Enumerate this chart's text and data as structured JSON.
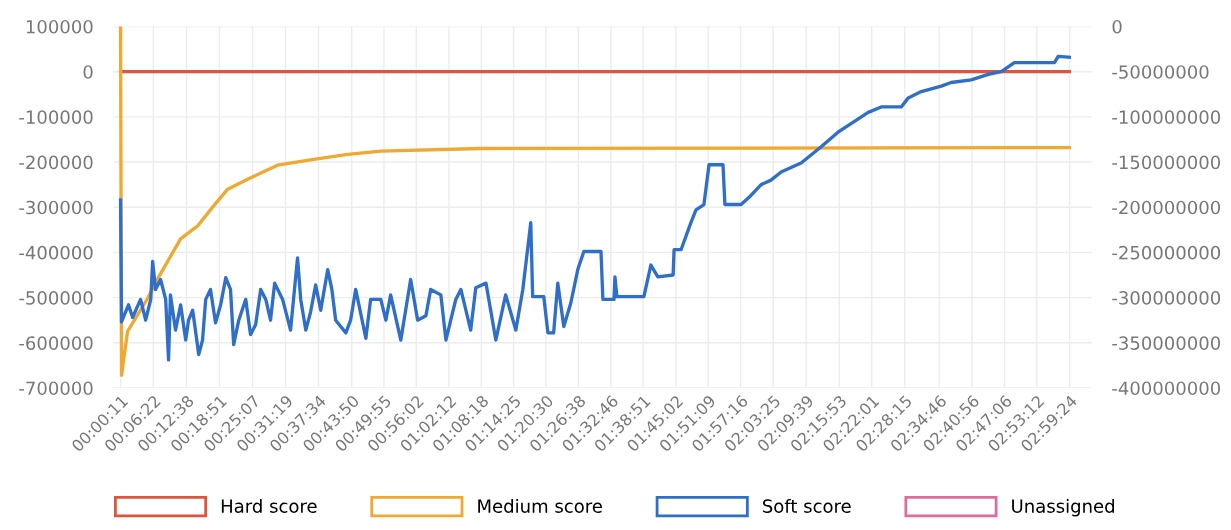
{
  "chart_data": {
    "type": "line",
    "xlim": [
      -0.02,
      3.06
    ],
    "xticks": [
      {
        "value": 0.00306,
        "label": "00:00:11"
      },
      {
        "value": 0.10611,
        "label": "00:06:22"
      },
      {
        "value": 0.21056,
        "label": "00:12:38"
      },
      {
        "value": 0.31417,
        "label": "00:18:51"
      },
      {
        "value": 0.41861,
        "label": "00:25:07"
      },
      {
        "value": 0.52194,
        "label": "00:31:19"
      },
      {
        "value": 0.62611,
        "label": "00:37:34"
      },
      {
        "value": 0.73056,
        "label": "00:43:50"
      },
      {
        "value": 0.83194,
        "label": "00:49:55"
      },
      {
        "value": 0.93389,
        "label": "00:56:02"
      },
      {
        "value": 1.03667,
        "label": "01:02:12"
      },
      {
        "value": 1.13833,
        "label": "01:08:18"
      },
      {
        "value": 1.24028,
        "label": "01:14:25"
      },
      {
        "value": 1.34167,
        "label": "01:20:30"
      },
      {
        "value": 1.44389,
        "label": "01:26:38"
      },
      {
        "value": 1.54611,
        "label": "01:32:46"
      },
      {
        "value": 1.6475,
        "label": "01:38:51"
      },
      {
        "value": 1.75056,
        "label": "01:45:02"
      },
      {
        "value": 1.8525,
        "label": "01:51:09"
      },
      {
        "value": 1.95444,
        "label": "01:57:16"
      },
      {
        "value": 2.05694,
        "label": "02:03:25"
      },
      {
        "value": 2.16083,
        "label": "02:09:39"
      },
      {
        "value": 2.26472,
        "label": "02:15:53"
      },
      {
        "value": 2.36694,
        "label": "02:22:01"
      },
      {
        "value": 2.47083,
        "label": "02:28:15"
      },
      {
        "value": 2.57944,
        "label": "02:34:46"
      },
      {
        "value": 2.68222,
        "label": "02:40:56"
      },
      {
        "value": 2.785,
        "label": "02:47:06"
      },
      {
        "value": 2.88667,
        "label": "02:53:12"
      },
      {
        "value": 2.99,
        "label": "02:59:24"
      }
    ],
    "ylim": [
      -700000,
      100000
    ],
    "yticks": [
      -700000,
      -600000,
      -500000,
      -400000,
      -300000,
      -200000,
      -100000,
      0,
      100000
    ],
    "y2lim": [
      -400000000,
      0
    ],
    "y2ticks": [
      -400000000,
      -350000000,
      -300000000,
      -250000000,
      -200000000,
      -150000000,
      -100000000,
      -50000000,
      0
    ],
    "grid": true,
    "legend": "bottom",
    "marker": "none",
    "line_style": "solid",
    "series": [
      {
        "name": "Hard score",
        "color": "#e0533d",
        "x": [
          0.003,
          2.989
        ],
        "values": [
          0,
          0
        ]
      },
      {
        "name": "Medium score",
        "color": "#f0a830",
        "x": [
          0.003,
          0.006,
          0.025,
          0.088,
          0.12,
          0.192,
          0.246,
          0.296,
          0.34,
          0.403,
          0.497,
          0.611,
          0.718,
          0.822,
          1.137,
          2.989
        ],
        "values": [
          100000,
          -672000,
          -575000,
          -502000,
          -458000,
          -370000,
          -341000,
          -297000,
          -260000,
          -238000,
          -207000,
          -194000,
          -183000,
          -176000,
          -170000,
          -168000
        ]
      },
      {
        "name": "Soft score",
        "color": "#2f6fc7",
        "axis": "y2",
        "x": [
          0.003,
          0.006,
          0.028,
          0.041,
          0.066,
          0.082,
          0.098,
          0.104,
          0.113,
          0.129,
          0.145,
          0.154,
          0.16,
          0.176,
          0.192,
          0.208,
          0.217,
          0.23,
          0.249,
          0.261,
          0.271,
          0.286,
          0.302,
          0.318,
          0.334,
          0.349,
          0.359,
          0.375,
          0.397,
          0.412,
          0.428,
          0.444,
          0.46,
          0.475,
          0.488,
          0.513,
          0.538,
          0.56,
          0.57,
          0.586,
          0.601,
          0.617,
          0.633,
          0.655,
          0.668,
          0.68,
          0.712,
          0.727,
          0.743,
          0.775,
          0.79,
          0.822,
          0.838,
          0.853,
          0.885,
          0.916,
          0.938,
          0.964,
          0.979,
          1.011,
          1.027,
          1.058,
          1.074,
          1.105,
          1.121,
          1.153,
          1.184,
          1.215,
          1.247,
          1.269,
          1.294,
          1.3,
          1.335,
          1.348,
          1.366,
          1.379,
          1.398,
          1.42,
          1.442,
          1.461,
          1.515,
          1.521,
          1.556,
          1.559,
          1.565,
          1.65,
          1.672,
          1.694,
          1.742,
          1.745,
          1.767,
          1.798,
          1.814,
          1.839,
          1.855,
          1.899,
          1.905,
          1.956,
          1.981,
          2.019,
          2.05,
          2.082,
          2.113,
          2.145,
          2.208,
          2.261,
          2.356,
          2.397,
          2.46,
          2.482,
          2.523,
          2.586,
          2.617,
          2.68,
          2.734,
          2.775,
          2.816,
          2.942,
          2.954,
          2.989
        ],
        "values": [
          -192000000,
          -327000000,
          -308000000,
          -322000000,
          -302000000,
          -325000000,
          -302000000,
          -260000000,
          -291000000,
          -280000000,
          -302000000,
          -369000000,
          -297000000,
          -336000000,
          -308000000,
          -347000000,
          -325000000,
          -314000000,
          -363000000,
          -347000000,
          -302000000,
          -291000000,
          -328000000,
          -308000000,
          -278000000,
          -291000000,
          -352000000,
          -325000000,
          -302000000,
          -341000000,
          -330000000,
          -291000000,
          -302000000,
          -325000000,
          -284000000,
          -302000000,
          -336000000,
          -256000000,
          -302000000,
          -336000000,
          -316000000,
          -286000000,
          -314000000,
          -269000000,
          -291000000,
          -325000000,
          -339000000,
          -325000000,
          -291000000,
          -345000000,
          -302000000,
          -302000000,
          -325000000,
          -297000000,
          -347000000,
          -280000000,
          -325000000,
          -320000000,
          -291000000,
          -297000000,
          -347000000,
          -302000000,
          -291000000,
          -336000000,
          -289000000,
          -284000000,
          -347000000,
          -297000000,
          -336000000,
          -291000000,
          -217000000,
          -299000000,
          -299000000,
          -339000000,
          -339000000,
          -284000000,
          -332000000,
          -306000000,
          -269000000,
          -249000000,
          -249000000,
          -302000000,
          -302000000,
          -277000000,
          -299000000,
          -299000000,
          -264000000,
          -277000000,
          -275000000,
          -247000000,
          -247000000,
          -217000000,
          -203000000,
          -197000000,
          -153000000,
          -153000000,
          -197000000,
          -197000000,
          -189000000,
          -175000000,
          -170000000,
          -161000000,
          -156000000,
          -151000000,
          -133000000,
          -117000000,
          -95000000,
          -89000000,
          -89000000,
          -79000000,
          -72000000,
          -66000000,
          -62000000,
          -59000000,
          -53000000,
          -50000000,
          -40000000,
          -40000000,
          -33000000,
          -34000000
        ]
      },
      {
        "name": "Unassigned",
        "color": "#e06c9f"
      }
    ]
  }
}
